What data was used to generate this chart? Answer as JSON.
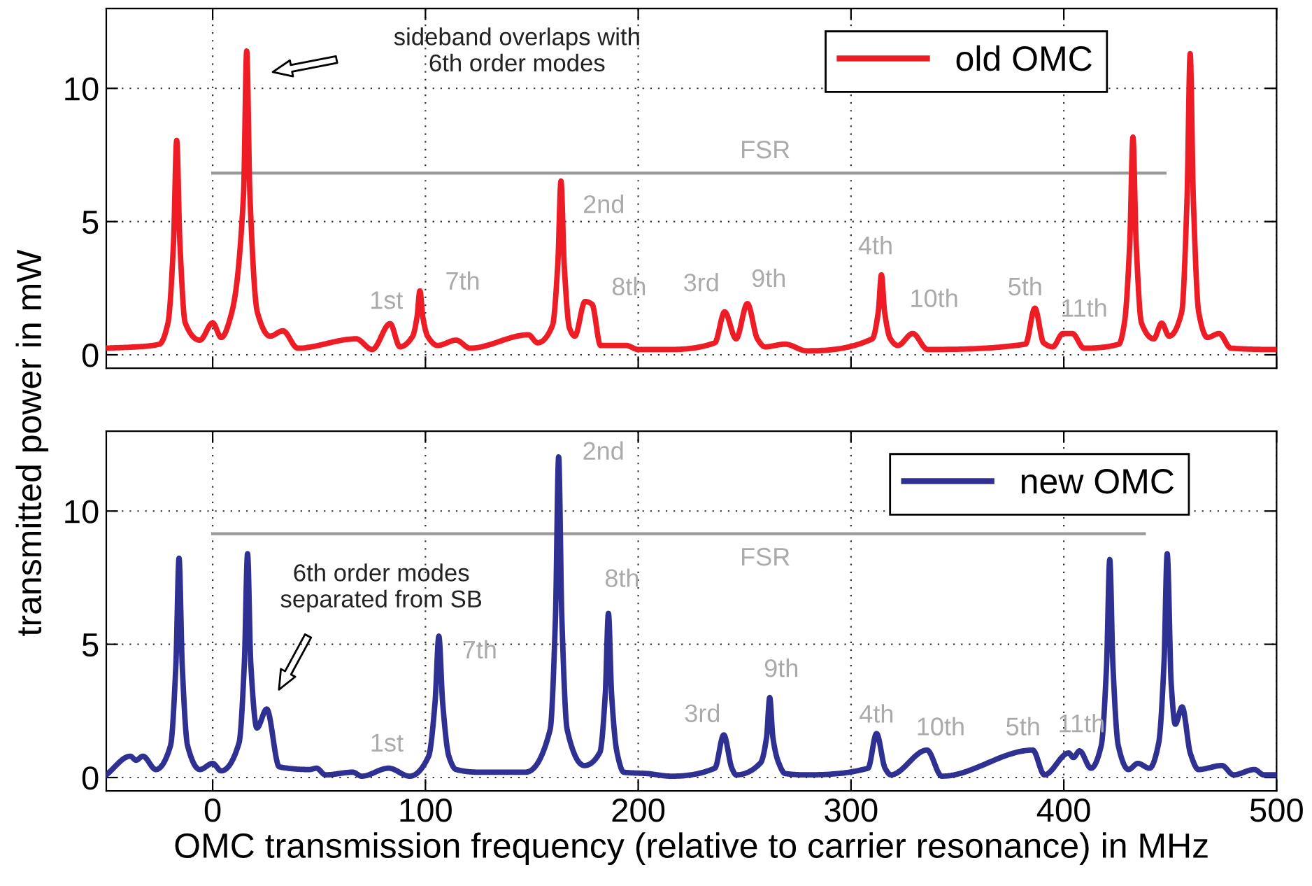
{
  "chart_data": [
    {
      "type": "line",
      "ylabel": "transmitted power in mW",
      "xlim": [
        -50,
        500
      ],
      "ylim": [
        -0.5,
        13
      ],
      "xticks": [
        0,
        100,
        200,
        300,
        400,
        500
      ],
      "yticks": [
        0,
        5,
        10
      ],
      "grid": true,
      "legend": "top right",
      "tick_labels": "y",
      "series": [
        {
          "name": "old OMC",
          "color": "#ee1c25",
          "x": [
            -50,
            -35.5,
            -25,
            -21,
            -18.4,
            -16.9,
            -15.4,
            -12.9,
            -6,
            0,
            4,
            9,
            14.5,
            16,
            17.5,
            21,
            27,
            33,
            40,
            67.4,
            75,
            83.4,
            88,
            94,
            96,
            97.4,
            98.8,
            101,
            105.7,
            114.4,
            121,
            148.4,
            152.7,
            159.7,
            162.2,
            163.7,
            165.2,
            167.7,
            170.2,
            175,
            178.3,
            182.3,
            194.3,
            200,
            215.5,
            236,
            240.6,
            246,
            251.3,
            256,
            259.6,
            269,
            279.2,
            310,
            312.8,
            314.3,
            315.8,
            318.5,
            322,
            329,
            336,
            382,
            386.4,
            390.5,
            394.8,
            399.6,
            404,
            409.5,
            425.9,
            428.5,
            431,
            432.5,
            434,
            436.5,
            442.3,
            446,
            449.5,
            455.4,
            457.9,
            459.4,
            460.9,
            463.4,
            467.5,
            473,
            478.5,
            498.2,
            500
          ],
          "values": [
            0.25,
            0.3,
            0.4,
            1.2,
            4.2,
            8.05,
            4.2,
            1.2,
            0.55,
            1.2,
            0.65,
            1.6,
            6,
            11.4,
            6,
            1.6,
            0.7,
            0.9,
            0.25,
            0.6,
            0.2,
            1.17,
            0.3,
            0.7,
            1.4,
            2.4,
            1.4,
            0.7,
            0.35,
            0.55,
            0.25,
            0.75,
            0.45,
            1.1,
            3.4,
            6.52,
            3.4,
            1.0,
            0.7,
            2.0,
            1.9,
            0.35,
            0.35,
            0.2,
            0.2,
            0.45,
            1.61,
            0.6,
            1.92,
            0.6,
            0.3,
            0.4,
            0.15,
            0.6,
            1.6,
            3.0,
            1.6,
            0.6,
            0.35,
            0.8,
            0.2,
            0.4,
            1.75,
            0.45,
            0.3,
            0.8,
            0.8,
            0.25,
            0.4,
            1.2,
            4.2,
            8.17,
            4.2,
            1.2,
            0.6,
            1.19,
            0.7,
            1.6,
            5.8,
            11.3,
            5.8,
            1.6,
            0.65,
            0.8,
            0.25,
            0.2,
            0.2
          ]
        },
        {
          "type": "line",
          "color": "#999999",
          "x": [
            0,
            447.6
          ],
          "values": [
            6.82,
            6.82
          ]
        }
      ],
      "annotations": [
        "sideband overlaps with\n6th order modes",
        {
          "text": "FSR",
          "x": 225,
          "y": 6.82
        },
        {
          "text": "1st",
          "x": 83.4,
          "y": 1.17
        },
        {
          "text": "7th",
          "x": 97.4,
          "y": 2.4
        },
        {
          "text": "2nd",
          "x": 163.7,
          "y": 6.52
        },
        {
          "text": "8th",
          "x": 178.3,
          "y": 1.9
        },
        {
          "text": "3rd",
          "x": 240.6,
          "y": 1.61
        },
        {
          "text": "9th",
          "x": 251.3,
          "y": 1.92
        },
        {
          "text": "4th",
          "x": 314.3,
          "y": 3.0
        },
        {
          "text": "10th",
          "x": 329,
          "y": 0.8
        },
        {
          "text": "5th",
          "x": 386.4,
          "y": 1.75
        },
        {
          "text": "11th",
          "x": 404,
          "y": 0.8
        }
      ]
    },
    {
      "type": "line",
      "xlabel": "OMC transmission frequency (relative to carrier resonance) in MHz",
      "xlim": [
        -50,
        500
      ],
      "ylim": [
        -0.5,
        13
      ],
      "xticks": [
        0,
        100,
        200,
        300,
        400,
        500
      ],
      "yticks": [
        0,
        5,
        10
      ],
      "grid": true,
      "legend": "top right",
      "series": [
        {
          "name": "new OMC",
          "color": "#2e3192",
          "x": [
            -50,
            -38.7,
            -36,
            -32.8,
            -26.7,
            -19.8,
            -17.3,
            -15.8,
            -14.3,
            -11.8,
            -6,
            0,
            4,
            12.4,
            14.9,
            16.4,
            17.9,
            20.8,
            25.4,
            31.3,
            45.5,
            48.8,
            53,
            65.9,
            70,
            82.7,
            92.6,
            101.5,
            104.5,
            106.3,
            108.1,
            111,
            114.4,
            125.4,
            132,
            147,
            158.6,
            161.1,
            162.6,
            164.1,
            166.6,
            174.7,
            182,
            184.5,
            186,
            187.5,
            190,
            193.2,
            204,
            215.5,
            236,
            240.2,
            244,
            246,
            257.5,
            260.3,
            261.8,
            263.3,
            266,
            269,
            279.2,
            308,
            312,
            316,
            318.7,
            335.7,
            342.7,
            385.4,
            390.9,
            402.3,
            404.5,
            407.4,
            412.8,
            417.6,
            420.1,
            421.6,
            423.1,
            425.6,
            430.4,
            434.8,
            440.3,
            444.6,
            447.1,
            448.6,
            450.5,
            452.4,
            455.6,
            459.5,
            463.3,
            474.3,
            479.8,
            489.6,
            494,
            500
          ],
          "values": [
            0.1,
            0.8,
            0.65,
            0.8,
            0.3,
            1.2,
            4.2,
            8.23,
            4.2,
            1.2,
            0.3,
            0.53,
            0.25,
            1.3,
            4.3,
            8.4,
            4.3,
            1.86,
            2.57,
            0.4,
            0.3,
            0.35,
            0.1,
            0.2,
            0.05,
            0.35,
            0.05,
            0.8,
            2.8,
            5.3,
            2.8,
            0.8,
            0.3,
            0.2,
            0.2,
            0.2,
            1.8,
            6,
            12.03,
            6,
            1.8,
            0.45,
            0.95,
            3.1,
            6.16,
            3.1,
            0.95,
            0.2,
            0.15,
            0.05,
            0.35,
            1.6,
            0.35,
            0.1,
            0.55,
            1.5,
            3.0,
            1.5,
            0.55,
            0.15,
            0.1,
            0.35,
            1.65,
            0.35,
            0.1,
            1.03,
            0.05,
            1.03,
            0.1,
            0.92,
            0.75,
            1.0,
            0.35,
            1.2,
            4.2,
            8.18,
            4.2,
            1.2,
            0.3,
            0.53,
            0.35,
            1.3,
            4.3,
            8.4,
            3.5,
            2.0,
            2.65,
            0.9,
            0.3,
            0.45,
            0.1,
            0.3,
            0.1,
            0.1
          ]
        },
        {
          "type": "line",
          "color": "#999999",
          "x": [
            0,
            437.9
          ],
          "values": [
            9.15,
            9.15
          ]
        }
      ],
      "annotations": [
        "6th order modes\nseparated from SB",
        {
          "text": "FSR",
          "x": 225,
          "y": 9.15
        },
        {
          "text": "1st",
          "x": 82.7,
          "y": 0.35
        },
        {
          "text": "7th",
          "x": 106.3,
          "y": 5.3
        },
        {
          "text": "2nd",
          "x": 162.6,
          "y": 12.03
        },
        {
          "text": "8th",
          "x": 186,
          "y": 6.16
        },
        {
          "text": "3rd",
          "x": 240.2,
          "y": 1.6
        },
        {
          "text": "9th",
          "x": 261.8,
          "y": 3.0
        },
        {
          "text": "4th",
          "x": 312,
          "y": 1.65
        },
        {
          "text": "10th",
          "x": 335.7,
          "y": 1.03
        },
        {
          "text": "5th",
          "x": 385.4,
          "y": 1.03
        },
        {
          "text": "11th",
          "x": 407.4,
          "y": 1.0
        }
      ]
    }
  ]
}
